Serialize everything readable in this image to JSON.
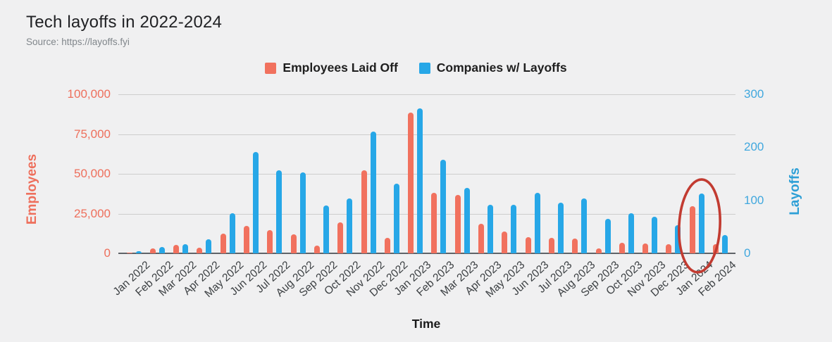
{
  "header": {
    "title": "Tech layoffs in 2022-2024",
    "source": "Source: https://layoffs.fyi"
  },
  "colors": {
    "employees": "#F1715E",
    "companies": "#27A7E7",
    "left_axis_text": "#EE6F5C",
    "right_axis_text": "#41A8DE",
    "annotation_ellipse": "#C23B31",
    "background": "#F0F0F1"
  },
  "chart_data": {
    "type": "bar",
    "title": "Tech layoffs in 2022-2024",
    "xlabel": "Time",
    "grid": true,
    "legend_position": "top",
    "categories": [
      "Jan 2022",
      "Feb 2022",
      "Mar 2022",
      "Apr 2022",
      "May 2022",
      "Jun 2022",
      "Jul 2022",
      "Aug 2022",
      "Sep 2022",
      "Oct 2022",
      "Nov 2022",
      "Dec 2022",
      "Jan 2023",
      "Feb 2023",
      "Mar 2023",
      "Apr 2023",
      "May 2023",
      "Jun 2023",
      "Jul 2023",
      "Aug 2023",
      "Sep 2023",
      "Oct 2023",
      "Nov 2023",
      "Dec 2023",
      "Jan 2024",
      "Feb 2024"
    ],
    "series": [
      {
        "name": "Employees Laid Off",
        "axis": "left",
        "color": "#F1715E",
        "values": [
          500,
          3100,
          5300,
          3700,
          12300,
          17200,
          14800,
          12000,
          4800,
          19300,
          52000,
          9600,
          88500,
          38200,
          36600,
          18500,
          13600,
          10100,
          9600,
          9200,
          3200,
          6700,
          6200,
          5900,
          29500,
          5700
        ]
      },
      {
        "name": "Companies w/ Layoffs",
        "axis": "right",
        "color": "#27A7E7",
        "values": [
          4,
          12,
          17,
          26,
          76,
          191,
          156,
          153,
          90,
          104,
          230,
          131,
          273,
          177,
          124,
          92,
          92,
          114,
          95,
          103,
          65,
          76,
          69,
          53,
          113,
          34
        ]
      }
    ],
    "left_axis": {
      "label": "Employees",
      "ticks": [
        "0",
        "25,000",
        "50,000",
        "75,000",
        "100,000"
      ],
      "min": 0,
      "max": 100000
    },
    "right_axis": {
      "label": "Layoffs",
      "ticks": [
        "0",
        "100",
        "200",
        "300"
      ],
      "min": 0,
      "max": 300
    },
    "annotation": "hand-drawn red ellipse circling the Jan 2024 bars"
  }
}
